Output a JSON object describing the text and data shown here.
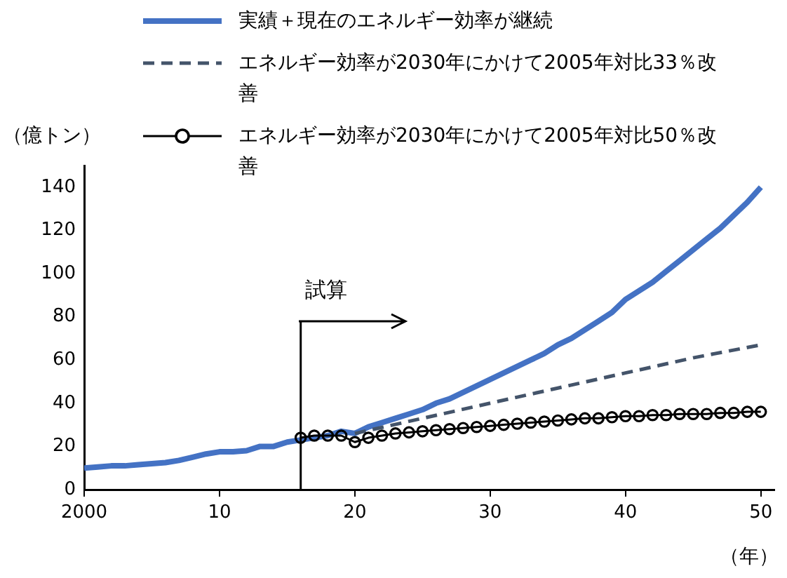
{
  "chart_data": {
    "type": "line",
    "ylabel": "（億トン）",
    "xlabel": "（年）",
    "xlim": [
      2000,
      2051
    ],
    "xticks": [
      2000,
      {
        "value": 2010,
        "label": "10"
      },
      {
        "value": 2020,
        "label": "20"
      },
      {
        "value": 2030,
        "label": "30"
      },
      {
        "value": 2040,
        "label": "40"
      },
      {
        "value": 2050,
        "label": "50"
      }
    ],
    "ylim": [
      0,
      150
    ],
    "yticks": [
      0,
      20,
      40,
      60,
      80,
      100,
      120,
      140
    ],
    "grid": false,
    "legend": "top",
    "ref_lines": [
      {
        "axis": "x",
        "value": 2016,
        "label": "試算",
        "color": "#000000"
      }
    ],
    "series": [
      {
        "name": "実績＋現在のエネルギー効率が継続",
        "color": "#4472c4",
        "marker": "none",
        "line_style": "solid",
        "x": [
          2000,
          2001,
          2002,
          2003,
          2004,
          2005,
          2006,
          2007,
          2008,
          2009,
          2010,
          2011,
          2012,
          2013,
          2014,
          2015,
          2016,
          2017,
          2018,
          2019,
          2020,
          2021,
          2022,
          2023,
          2024,
          2025,
          2026,
          2027,
          2028,
          2029,
          2030,
          2031,
          2032,
          2033,
          2034,
          2035,
          2036,
          2037,
          2038,
          2039,
          2040,
          2041,
          2042,
          2043,
          2044,
          2045,
          2046,
          2047,
          2048,
          2049,
          2050
        ],
        "values": [
          10,
          10.5,
          11,
          11,
          11.5,
          12,
          12.5,
          13.5,
          15,
          16.5,
          17.5,
          17.5,
          18,
          20,
          20,
          22,
          23,
          24,
          25,
          27,
          26,
          29,
          31,
          33,
          35,
          37,
          40,
          42,
          45,
          48,
          51,
          54,
          57,
          60,
          63,
          67,
          70,
          74,
          78,
          82,
          88,
          92,
          96,
          101,
          106,
          111,
          116,
          121,
          127,
          133,
          140
        ]
      },
      {
        "name": "エネルギー効率が2030年にかけて2005年対比33％改善",
        "color": "#44546a",
        "marker": "none",
        "line_style": "dashed",
        "x": [
          2020,
          2025,
          2030,
          2035,
          2040,
          2045,
          2050
        ],
        "values": [
          26,
          33,
          40,
          47,
          54,
          61,
          67
        ]
      },
      {
        "name": "エネルギー効率が2030年にかけて2005年対比50％改善",
        "color": "#000000",
        "marker": "circle",
        "line_style": "solid",
        "x": [
          2016,
          2017,
          2018,
          2019,
          2020,
          2021,
          2022,
          2023,
          2024,
          2025,
          2026,
          2027,
          2028,
          2029,
          2030,
          2031,
          2032,
          2033,
          2034,
          2035,
          2036,
          2037,
          2038,
          2039,
          2040,
          2041,
          2042,
          2043,
          2044,
          2045,
          2046,
          2047,
          2048,
          2049,
          2050
        ],
        "values": [
          24,
          25,
          25,
          25,
          22,
          24,
          25,
          26,
          26.5,
          27,
          27.5,
          28,
          28.5,
          29,
          29.5,
          30,
          30.5,
          31,
          31.5,
          32,
          32.5,
          33,
          33,
          33.5,
          34,
          34,
          34.5,
          34.5,
          35,
          35,
          35,
          35.5,
          35.5,
          36,
          36
        ]
      }
    ]
  }
}
